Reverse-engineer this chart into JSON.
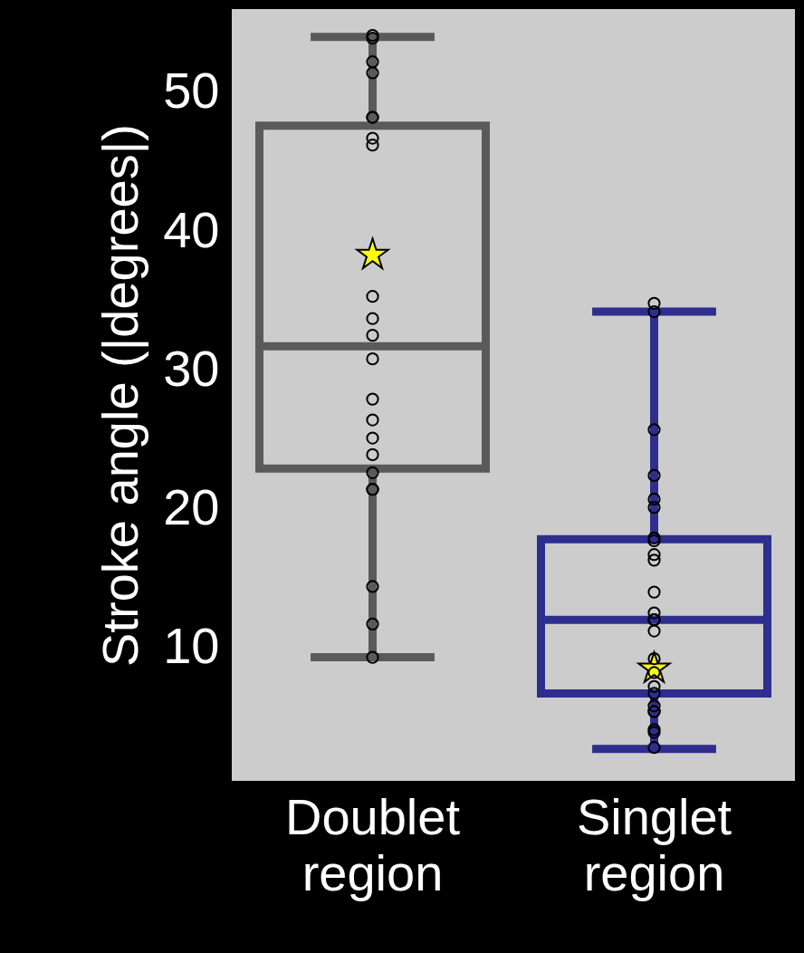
{
  "chart_data": {
    "type": "box",
    "ylabel": "Stroke angle (|degrees|)",
    "categories": [
      "Doublet region",
      "Singlet region"
    ],
    "ylim": [
      0.4,
      56
    ],
    "yticks": [
      10,
      20,
      30,
      40,
      50
    ],
    "grid": false,
    "marker": "circle",
    "series": [
      {
        "colors": [
          "#5a5a5a",
          "#2e2e8e"
        ],
        "boxes": [
          {
            "low": 9.3,
            "q1": 22.9,
            "median": 31.7,
            "q3": 47.6,
            "high": 54.0,
            "mean": 38.4
          },
          {
            "low": 2.7,
            "q1": 6.7,
            "median": 12.0,
            "q3": 17.8,
            "high": 34.2,
            "mean": 8.6
          }
        ]
      },
      {
        "type": "scatter",
        "color": "#000000",
        "x": [
          "Doublet region",
          "Doublet region",
          "Doublet region",
          "Doublet region",
          "Doublet region",
          "Doublet region",
          "Doublet region",
          "Doublet region",
          "Doublet region",
          "Doublet region",
          "Doublet region",
          "Doublet region",
          "Doublet region",
          "Doublet region",
          "Doublet region",
          "Doublet region",
          "Doublet region",
          "Doublet region",
          "Doublet region",
          "Doublet region",
          "Doublet region",
          "Doublet region",
          "Singlet region",
          "Singlet region",
          "Singlet region",
          "Singlet region",
          "Singlet region",
          "Singlet region",
          "Singlet region",
          "Singlet region",
          "Singlet region",
          "Singlet region",
          "Singlet region",
          "Singlet region",
          "Singlet region",
          "Singlet region",
          "Singlet region",
          "Singlet region",
          "Singlet region",
          "Singlet region",
          "Singlet region",
          "Singlet region",
          "Singlet region",
          "Singlet region",
          "Singlet region",
          "Singlet region",
          "Singlet region"
        ],
        "values": [
          54.1,
          53.9,
          52.2,
          51.4,
          48.2,
          48.2,
          46.7,
          46.2,
          35.3,
          33.7,
          32.5,
          30.8,
          27.9,
          26.4,
          25.1,
          23.9,
          22.6,
          21.4,
          21.4,
          14.4,
          11.7,
          9.3,
          34.8,
          34.2,
          25.7,
          22.4,
          20.7,
          20.1,
          17.7,
          17.9,
          16.7,
          16.3,
          14.0,
          12.0,
          12.0,
          12.5,
          11.2,
          9.2,
          8.2,
          7.2,
          6.7,
          5.8,
          5.4,
          5.4,
          3.9,
          4.1,
          2.8
        ]
      }
    ]
  }
}
